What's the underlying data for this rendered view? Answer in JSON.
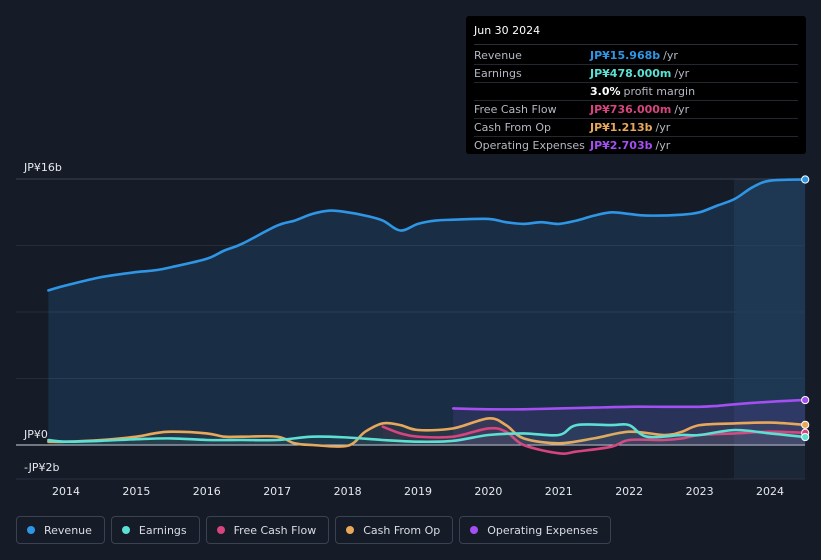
{
  "chart_data": {
    "type": "line",
    "title": "",
    "xlabel": "",
    "ylabel": "",
    "x_tick_labels": [
      "2014",
      "2015",
      "2016",
      "2017",
      "2018",
      "2019",
      "2020",
      "2021",
      "2022",
      "2023",
      "2024"
    ],
    "y_tick_labels": {
      "top": "JP¥16b",
      "zero": "JP¥0",
      "bottom": "-JP¥2b"
    },
    "ylim": [
      -2,
      16
    ],
    "units": "JP¥ billions per year",
    "series": [
      {
        "name": "Revenue",
        "color": "#2f96e6",
        "filled": true,
        "points": [
          [
            2013.75,
            9.3
          ],
          [
            2014.0,
            9.6
          ],
          [
            2014.5,
            10.1
          ],
          [
            2015.0,
            10.4
          ],
          [
            2015.25,
            10.5
          ],
          [
            2015.5,
            10.7
          ],
          [
            2016.0,
            11.2
          ],
          [
            2016.25,
            11.7
          ],
          [
            2016.5,
            12.1
          ],
          [
            2017.0,
            13.2
          ],
          [
            2017.25,
            13.5
          ],
          [
            2017.5,
            13.9
          ],
          [
            2017.75,
            14.1
          ],
          [
            2018.0,
            14.0
          ],
          [
            2018.25,
            13.8
          ],
          [
            2018.5,
            13.5
          ],
          [
            2018.75,
            12.9
          ],
          [
            2019.0,
            13.3
          ],
          [
            2019.25,
            13.5
          ],
          [
            2019.5,
            13.55
          ],
          [
            2020.0,
            13.6
          ],
          [
            2020.25,
            13.4
          ],
          [
            2020.5,
            13.3
          ],
          [
            2020.75,
            13.4
          ],
          [
            2021.0,
            13.3
          ],
          [
            2021.25,
            13.5
          ],
          [
            2021.5,
            13.8
          ],
          [
            2021.75,
            14.0
          ],
          [
            2022.0,
            13.9
          ],
          [
            2022.25,
            13.8
          ],
          [
            2022.75,
            13.85
          ],
          [
            2023.0,
            14.0
          ],
          [
            2023.25,
            14.4
          ],
          [
            2023.5,
            14.8
          ],
          [
            2023.75,
            15.5
          ],
          [
            2024.0,
            15.9
          ],
          [
            2024.5,
            15.968
          ]
        ]
      },
      {
        "name": "Earnings",
        "color": "#5ce0d3",
        "filled": false,
        "points": [
          [
            2013.75,
            0.3
          ],
          [
            2014.0,
            0.2
          ],
          [
            2014.5,
            0.25
          ],
          [
            2015.0,
            0.35
          ],
          [
            2015.5,
            0.4
          ],
          [
            2016.0,
            0.3
          ],
          [
            2016.5,
            0.3
          ],
          [
            2017.0,
            0.3
          ],
          [
            2017.5,
            0.5
          ],
          [
            2018.0,
            0.45
          ],
          [
            2018.5,
            0.3
          ],
          [
            2019.0,
            0.2
          ],
          [
            2019.5,
            0.25
          ],
          [
            2020.0,
            0.6
          ],
          [
            2020.5,
            0.7
          ],
          [
            2021.0,
            0.6
          ],
          [
            2021.25,
            1.2
          ],
          [
            2021.75,
            1.2
          ],
          [
            2022.0,
            1.2
          ],
          [
            2022.25,
            0.5
          ],
          [
            2022.75,
            0.6
          ],
          [
            2023.0,
            0.6
          ],
          [
            2023.5,
            0.9
          ],
          [
            2024.0,
            0.7
          ],
          [
            2024.5,
            0.478
          ]
        ]
      },
      {
        "name": "Free Cash Flow",
        "color": "#d6457e",
        "filled": false,
        "points": [
          [
            2018.5,
            1.1
          ],
          [
            2018.75,
            0.7
          ],
          [
            2019.0,
            0.5
          ],
          [
            2019.5,
            0.5
          ],
          [
            2020.0,
            1.0
          ],
          [
            2020.25,
            0.8
          ],
          [
            2020.5,
            0.0
          ],
          [
            2021.0,
            -0.5
          ],
          [
            2021.25,
            -0.4
          ],
          [
            2021.75,
            -0.1
          ],
          [
            2022.0,
            0.3
          ],
          [
            2022.5,
            0.3
          ],
          [
            2022.75,
            0.4
          ],
          [
            2023.0,
            0.6
          ],
          [
            2023.5,
            0.7
          ],
          [
            2024.0,
            0.8
          ],
          [
            2024.5,
            0.736
          ]
        ]
      },
      {
        "name": "Cash From Op",
        "color": "#e8a85b",
        "filled": false,
        "points": [
          [
            2013.75,
            0.2
          ],
          [
            2014.0,
            0.2
          ],
          [
            2014.5,
            0.3
          ],
          [
            2015.0,
            0.5
          ],
          [
            2015.25,
            0.7
          ],
          [
            2015.5,
            0.8
          ],
          [
            2016.0,
            0.7
          ],
          [
            2016.25,
            0.5
          ],
          [
            2016.5,
            0.5
          ],
          [
            2017.0,
            0.5
          ],
          [
            2017.25,
            0.1
          ],
          [
            2017.5,
            0.0
          ],
          [
            2018.0,
            -0.05
          ],
          [
            2018.25,
            0.8
          ],
          [
            2018.5,
            1.3
          ],
          [
            2018.75,
            1.2
          ],
          [
            2019.0,
            0.9
          ],
          [
            2019.5,
            1.0
          ],
          [
            2020.0,
            1.6
          ],
          [
            2020.25,
            1.2
          ],
          [
            2020.5,
            0.4
          ],
          [
            2021.0,
            0.1
          ],
          [
            2021.5,
            0.4
          ],
          [
            2022.0,
            0.8
          ],
          [
            2022.5,
            0.6
          ],
          [
            2022.75,
            0.8
          ],
          [
            2023.0,
            1.2
          ],
          [
            2023.5,
            1.3
          ],
          [
            2024.0,
            1.35
          ],
          [
            2024.5,
            1.213
          ]
        ]
      },
      {
        "name": "Operating Expenses",
        "color": "#a34ff2",
        "filled": true,
        "points": [
          [
            2019.5,
            2.2
          ],
          [
            2020.0,
            2.15
          ],
          [
            2020.5,
            2.15
          ],
          [
            2021.0,
            2.2
          ],
          [
            2021.5,
            2.25
          ],
          [
            2022.0,
            2.3
          ],
          [
            2022.5,
            2.3
          ],
          [
            2023.0,
            2.3
          ],
          [
            2023.25,
            2.35
          ],
          [
            2023.5,
            2.45
          ],
          [
            2024.0,
            2.6
          ],
          [
            2024.5,
            2.703
          ]
        ]
      }
    ]
  },
  "tooltip": {
    "date": "Jun 30 2024",
    "rows": [
      {
        "label": "Revenue",
        "value": "JP¥15.968b",
        "unit": "/yr",
        "color": "#2f96e6"
      },
      {
        "label": "Earnings",
        "value": "JP¥478.000m",
        "unit": "/yr",
        "color": "#5ce0d3"
      },
      {
        "label": "",
        "value": "3.0%",
        "unit": "profit margin",
        "color": "#ffffff"
      },
      {
        "label": "Free Cash Flow",
        "value": "JP¥736.000m",
        "unit": "/yr",
        "color": "#d6457e"
      },
      {
        "label": "Cash From Op",
        "value": "JP¥1.213b",
        "unit": "/yr",
        "color": "#e8a85b"
      },
      {
        "label": "Operating Expenses",
        "value": "JP¥2.703b",
        "unit": "/yr",
        "color": "#a34ff2"
      }
    ]
  },
  "legend": [
    {
      "label": "Revenue",
      "color": "#2f96e6"
    },
    {
      "label": "Earnings",
      "color": "#5ce0d3"
    },
    {
      "label": "Free Cash Flow",
      "color": "#d6457e"
    },
    {
      "label": "Cash From Op",
      "color": "#e8a85b"
    },
    {
      "label": "Operating Expenses",
      "color": "#a34ff2"
    }
  ]
}
